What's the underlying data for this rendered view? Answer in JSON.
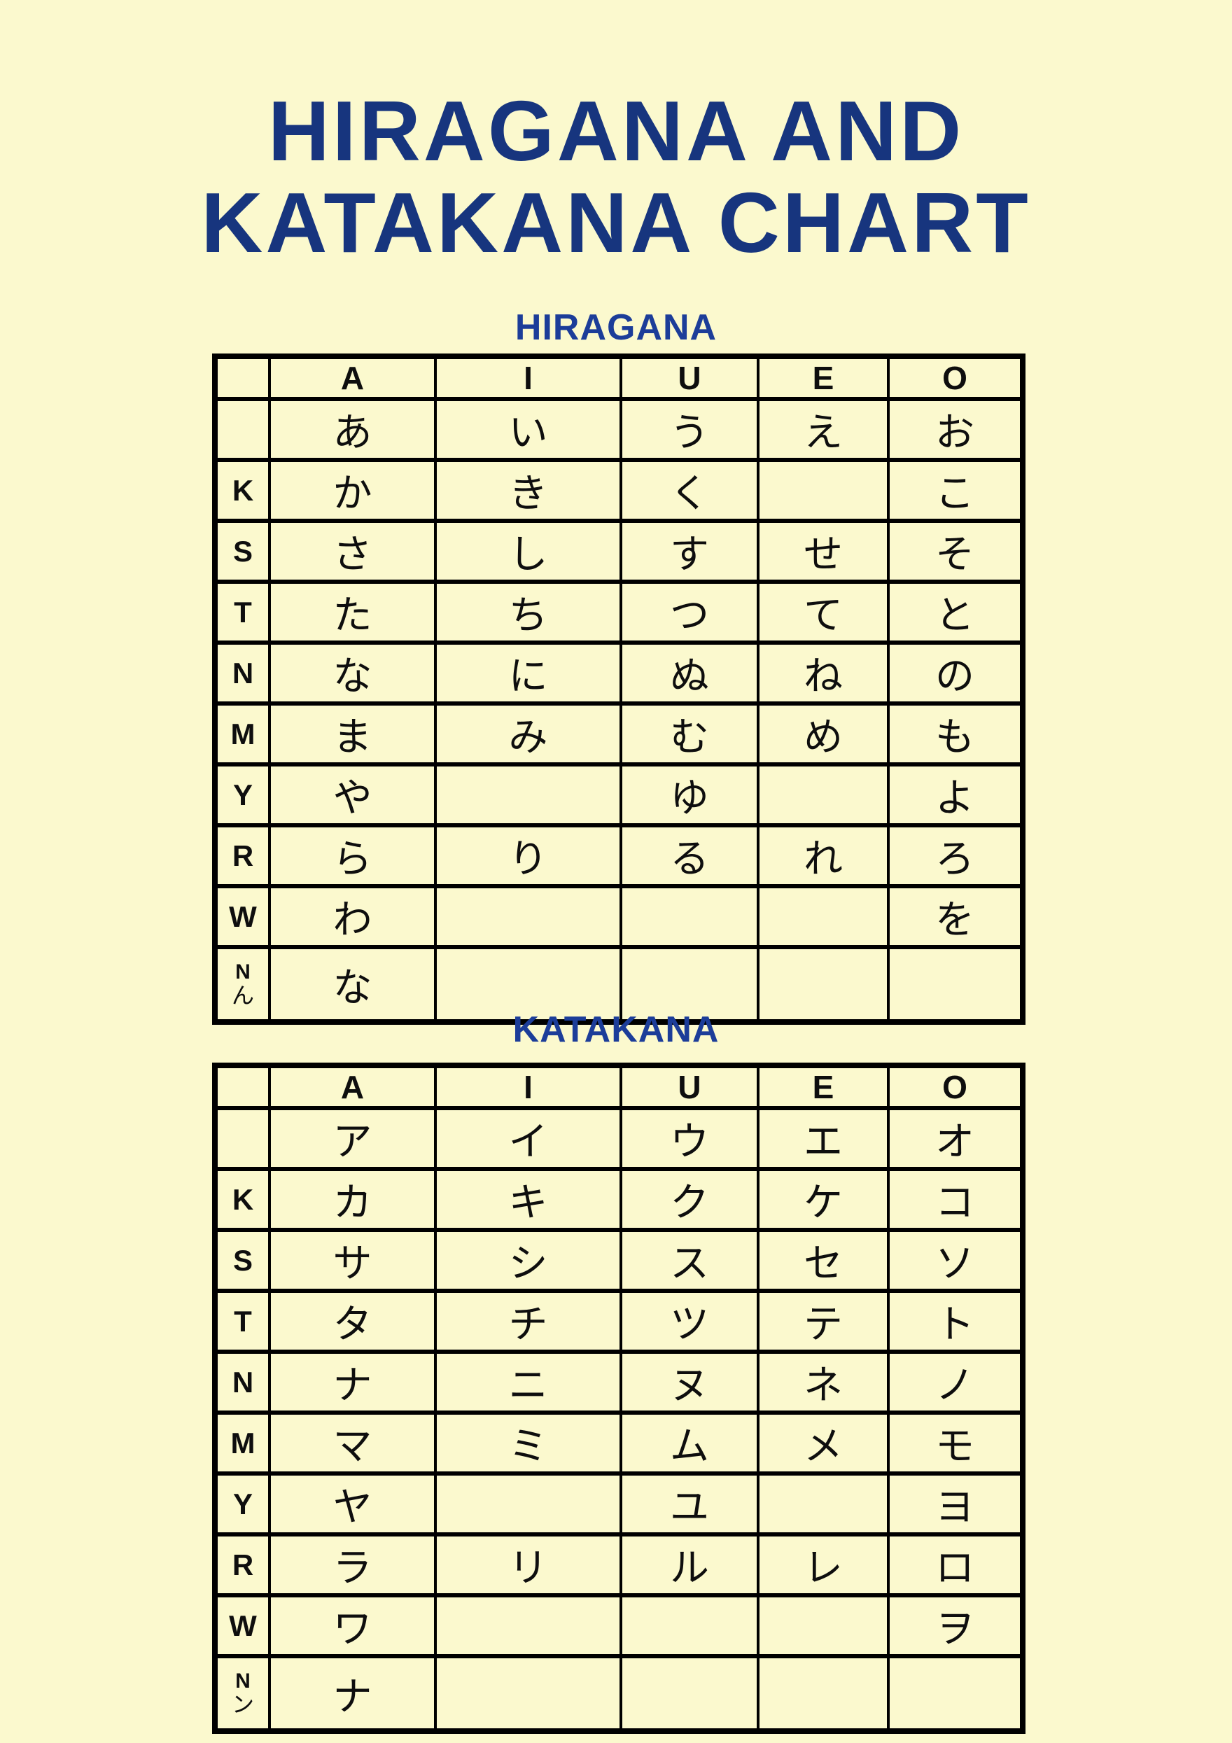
{
  "page": {
    "background_color": "#FBF9CE",
    "title_color": "#17357E",
    "heading_color": "#1C3D99",
    "table_ink_color": "#0E0E0E",
    "border_color": "#000000"
  },
  "title": {
    "line1": "HIRAGANA AND",
    "line2": "KATAKANA CHART"
  },
  "sections": [
    {
      "heading": "HIRAGANA",
      "column_headers": [
        "A",
        "I",
        "U",
        "E",
        "O"
      ],
      "rows": [
        {
          "label": "",
          "cells": [
            "あ",
            "い",
            "う",
            "え",
            "お"
          ]
        },
        {
          "label": "K",
          "cells": [
            "か",
            "き",
            "く",
            "",
            "こ"
          ]
        },
        {
          "label": "S",
          "cells": [
            "さ",
            "し",
            "す",
            "せ",
            "そ"
          ]
        },
        {
          "label": "T",
          "cells": [
            "た",
            "ち",
            "つ",
            "て",
            "と"
          ]
        },
        {
          "label": "N",
          "cells": [
            "な",
            "に",
            "ぬ",
            "ね",
            "の"
          ]
        },
        {
          "label": "M",
          "cells": [
            "ま",
            "み",
            "む",
            "め",
            "も"
          ]
        },
        {
          "label": "Y",
          "cells": [
            "や",
            "",
            "ゆ",
            "",
            "よ"
          ]
        },
        {
          "label": "R",
          "cells": [
            "ら",
            "り",
            "る",
            "れ",
            "ろ"
          ]
        },
        {
          "label": "W",
          "cells": [
            "わ",
            "",
            "",
            "",
            "を"
          ]
        },
        {
          "label": "N",
          "label_second_line": "ん",
          "cells": [
            "な",
            "",
            "",
            "",
            ""
          ]
        }
      ]
    },
    {
      "heading": "KATAKANA",
      "column_headers": [
        "A",
        "I",
        "U",
        "E",
        "O"
      ],
      "rows": [
        {
          "label": "",
          "cells": [
            "ア",
            "イ",
            "ウ",
            "エ",
            "オ"
          ]
        },
        {
          "label": "K",
          "cells": [
            "カ",
            "キ",
            "ク",
            "ケ",
            "コ"
          ]
        },
        {
          "label": "S",
          "cells": [
            "サ",
            "シ",
            "ス",
            "セ",
            "ソ"
          ]
        },
        {
          "label": "T",
          "cells": [
            "タ",
            "チ",
            "ツ",
            "テ",
            "ト"
          ]
        },
        {
          "label": "N",
          "cells": [
            "ナ",
            "ニ",
            "ヌ",
            "ネ",
            "ノ"
          ]
        },
        {
          "label": "M",
          "cells": [
            "マ",
            "ミ",
            "ム",
            "メ",
            "モ"
          ]
        },
        {
          "label": "Y",
          "cells": [
            "ヤ",
            "",
            "ユ",
            "",
            "ヨ"
          ]
        },
        {
          "label": "R",
          "cells": [
            "ラ",
            "リ",
            "ル",
            "レ",
            "ロ"
          ]
        },
        {
          "label": "W",
          "cells": [
            "ワ",
            "",
            "",
            "",
            "ヲ"
          ]
        },
        {
          "label": "N",
          "label_second_line": "ン",
          "cells": [
            "ナ",
            "",
            "",
            "",
            ""
          ]
        }
      ]
    }
  ]
}
